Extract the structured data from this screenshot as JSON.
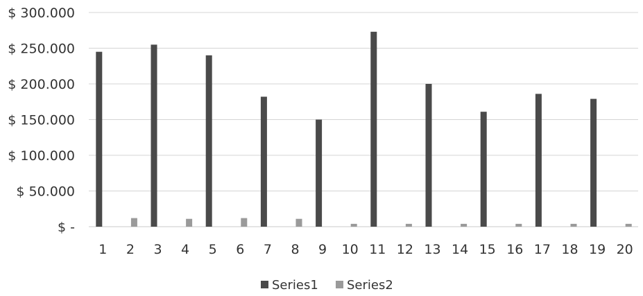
{
  "chart_data": {
    "type": "bar",
    "title": "",
    "xlabel": "",
    "ylabel": "",
    "categories": [
      "1",
      "2",
      "3",
      "4",
      "5",
      "6",
      "7",
      "8",
      "9",
      "10",
      "11",
      "12",
      "13",
      "14",
      "15",
      "16",
      "17",
      "18",
      "19",
      "20"
    ],
    "y_tick_labels": [
      "$ -",
      "$ 50.000",
      "$ 100.000",
      "$ 150.000",
      "$ 200.000",
      "$ 250.000",
      "$ 300.000"
    ],
    "ylim": [
      0,
      300000
    ],
    "y_ticks": [
      0,
      50000,
      100000,
      150000,
      200000,
      250000,
      300000
    ],
    "grid": true,
    "legend_position": "bottom",
    "series": [
      {
        "name": "Series1",
        "color": "#4a4a4a",
        "values": [
          245000,
          0,
          255000,
          0,
          240000,
          0,
          182000,
          0,
          150000,
          0,
          273000,
          0,
          200000,
          0,
          161000,
          0,
          186000,
          0,
          179000,
          0
        ]
      },
      {
        "name": "Series2",
        "color": "#9a9a9a",
        "values": [
          0,
          12000,
          0,
          11000,
          0,
          12000,
          0,
          11000,
          0,
          4000,
          0,
          4000,
          0,
          4000,
          0,
          4000,
          0,
          4000,
          0,
          4000
        ]
      }
    ]
  }
}
